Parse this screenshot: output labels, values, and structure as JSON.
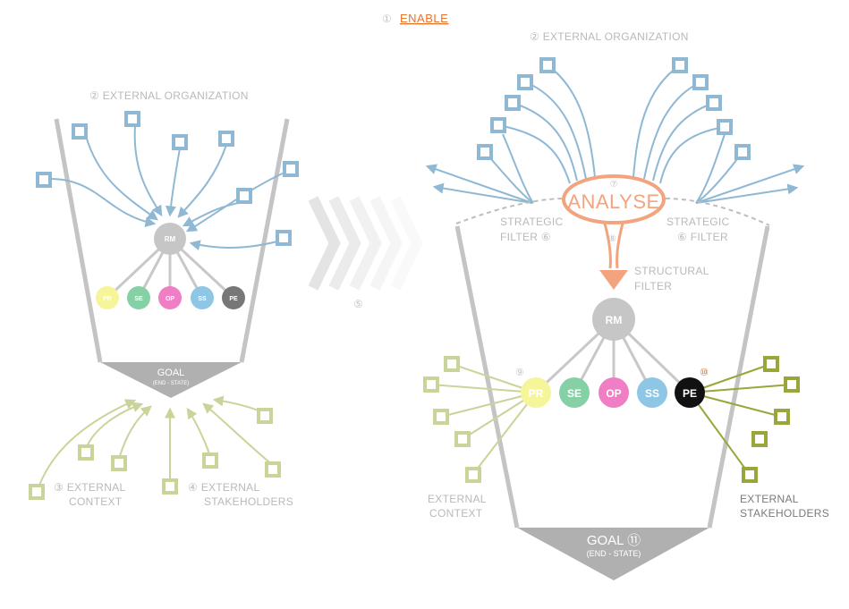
{
  "header": {
    "step_number": "①",
    "title": "ENABLE"
  },
  "left": {
    "external_organization": "② EXTERNAL ORGANIZATION",
    "rm": "RM",
    "units": [
      "PR",
      "SE",
      "OP",
      "SS",
      "PE"
    ],
    "goal": "GOAL",
    "goal_sub": "(END - STATE)",
    "context_l1": "③ EXTERNAL",
    "context_l2": "CONTEXT",
    "stake_l1": "④ EXTERNAL",
    "stake_l2": "STAKEHOLDERS"
  },
  "transition": {
    "step": "⑤"
  },
  "right": {
    "external_organization": "② EXTERNAL ORGANIZATION",
    "analyse_num": "⑦",
    "analyse": "ANALYSE",
    "strategic_left_l1": "STRATEGIC",
    "strategic_left_l2": "FILTER ⑥",
    "strategic_right_l1": "STRATEGIC",
    "strategic_right_l2": "⑥ FILTER",
    "structural_num": "⑧",
    "structural_l1": "STRUCTURAL",
    "structural_l2": "FILTER",
    "rm": "RM",
    "pr_num": "⑨",
    "pe_num": "⑩",
    "units": [
      "PR",
      "SE",
      "OP",
      "SS",
      "PE"
    ],
    "goal": "GOAL ⑪",
    "goal_sub": "(END - STATE)",
    "context_l1": "EXTERNAL",
    "context_l2": "CONTEXT",
    "stake_l1": "EXTERNAL",
    "stake_l2": "STAKEHOLDERS"
  },
  "colors": {
    "org_blue": "#8fb8d4",
    "context_green": "#c9d49a",
    "stakeholder_olive": "#9aa63a",
    "orange": "#f3a47e",
    "gray": "#bdbdbd",
    "pr": "#f7f59a",
    "se": "#86d0a5",
    "op": "#ef7ec5",
    "ss": "#8ec6e6",
    "pe_left": "#777777",
    "pe_right": "#111111"
  }
}
